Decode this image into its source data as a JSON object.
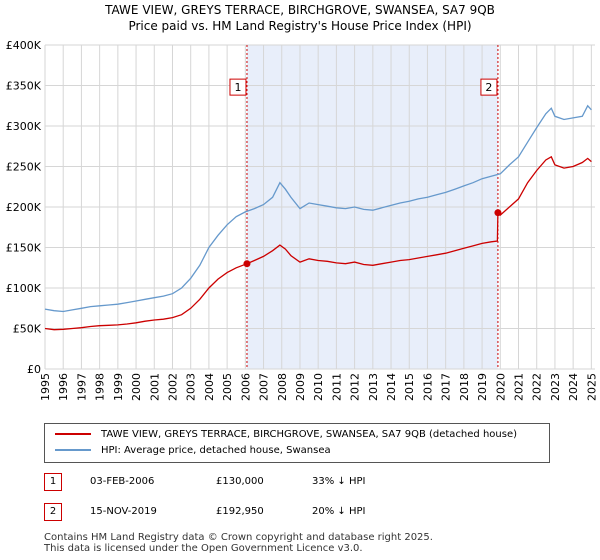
{
  "title": {
    "line1": "TAWE VIEW, GREYS TERRACE, BIRCHGROVE, SWANSEA, SA7 9QB",
    "line2": "Price paid vs. HM Land Registry's House Price Index (HPI)"
  },
  "chart_data": {
    "type": "line",
    "x_range": [
      1995.0,
      2025.2
    ],
    "ylim": [
      0,
      400000
    ],
    "y_ticks": [
      {
        "value": 0,
        "label": "£0"
      },
      {
        "value": 50000,
        "label": "£50K"
      },
      {
        "value": 100000,
        "label": "£100K"
      },
      {
        "value": 150000,
        "label": "£150K"
      },
      {
        "value": 200000,
        "label": "£200K"
      },
      {
        "value": 250000,
        "label": "£250K"
      },
      {
        "value": 300000,
        "label": "£300K"
      },
      {
        "value": 350000,
        "label": "£350K"
      },
      {
        "value": 400000,
        "label": "£400K"
      }
    ],
    "x_ticks": [
      "1995",
      "1996",
      "1997",
      "1998",
      "1999",
      "2000",
      "2001",
      "2002",
      "2003",
      "2004",
      "2005",
      "2006",
      "2007",
      "2008",
      "2009",
      "2010",
      "2011",
      "2012",
      "2013",
      "2014",
      "2015",
      "2016",
      "2017",
      "2018",
      "2019",
      "2020",
      "2021",
      "2022",
      "2023",
      "2024",
      "2025"
    ],
    "grid": true,
    "shaded_span": [
      2006.09,
      2019.87
    ],
    "series": [
      {
        "name": "TAWE VIEW, GREYS TERRACE, BIRCHGROVE, SWANSEA, SA7 9QB (detached house)",
        "color": "#cc0000",
        "points": [
          [
            1995.0,
            50000
          ],
          [
            1995.5,
            48500
          ],
          [
            1996.0,
            49000
          ],
          [
            1996.5,
            50000
          ],
          [
            1997.0,
            51000
          ],
          [
            1997.5,
            52500
          ],
          [
            1998.0,
            53500
          ],
          [
            1998.5,
            54000
          ],
          [
            1999.0,
            54500
          ],
          [
            1999.5,
            55500
          ],
          [
            2000.0,
            57000
          ],
          [
            2000.5,
            59000
          ],
          [
            2001.0,
            60500
          ],
          [
            2001.5,
            61500
          ],
          [
            2002.0,
            63500
          ],
          [
            2002.5,
            67000
          ],
          [
            2003.0,
            75000
          ],
          [
            2003.5,
            86000
          ],
          [
            2004.0,
            100000
          ],
          [
            2004.5,
            111000
          ],
          [
            2005.0,
            119000
          ],
          [
            2005.5,
            125000
          ],
          [
            2006.09,
            130000
          ],
          [
            2006.5,
            134000
          ],
          [
            2007.0,
            139000
          ],
          [
            2007.5,
            146000
          ],
          [
            2007.9,
            153000
          ],
          [
            2008.2,
            148000
          ],
          [
            2008.5,
            140000
          ],
          [
            2009.0,
            132000
          ],
          [
            2009.5,
            136000
          ],
          [
            2010.0,
            134000
          ],
          [
            2010.5,
            133000
          ],
          [
            2011.0,
            131000
          ],
          [
            2011.5,
            130000
          ],
          [
            2012.0,
            132000
          ],
          [
            2012.5,
            129000
          ],
          [
            2013.0,
            128000
          ],
          [
            2013.5,
            130000
          ],
          [
            2014.0,
            132000
          ],
          [
            2014.5,
            134000
          ],
          [
            2015.0,
            135000
          ],
          [
            2015.5,
            137000
          ],
          [
            2016.0,
            139000
          ],
          [
            2016.5,
            141000
          ],
          [
            2017.0,
            143000
          ],
          [
            2017.5,
            146000
          ],
          [
            2018.0,
            149000
          ],
          [
            2018.5,
            152000
          ],
          [
            2019.0,
            155000
          ],
          [
            2019.5,
            157000
          ],
          [
            2019.84,
            158000
          ],
          [
            2019.87,
            192950
          ],
          [
            2020.0,
            190000
          ],
          [
            2020.5,
            200000
          ],
          [
            2021.0,
            210000
          ],
          [
            2021.5,
            230000
          ],
          [
            2022.0,
            245000
          ],
          [
            2022.5,
            258000
          ],
          [
            2022.8,
            262000
          ],
          [
            2023.0,
            252000
          ],
          [
            2023.5,
            248000
          ],
          [
            2024.0,
            250000
          ],
          [
            2024.5,
            255000
          ],
          [
            2024.8,
            260000
          ],
          [
            2025.0,
            256000
          ]
        ]
      },
      {
        "name": "HPI: Average price, detached house, Swansea",
        "color": "#6699cc",
        "points": [
          [
            1995.0,
            74000
          ],
          [
            1995.5,
            72000
          ],
          [
            1996.0,
            71000
          ],
          [
            1996.5,
            73000
          ],
          [
            1997.0,
            75000
          ],
          [
            1997.5,
            77000
          ],
          [
            1998.0,
            78000
          ],
          [
            1998.5,
            79000
          ],
          [
            1999.0,
            80000
          ],
          [
            1999.5,
            82000
          ],
          [
            2000.0,
            84000
          ],
          [
            2000.5,
            86000
          ],
          [
            2001.0,
            88000
          ],
          [
            2001.5,
            90000
          ],
          [
            2002.0,
            93000
          ],
          [
            2002.5,
            100000
          ],
          [
            2003.0,
            112000
          ],
          [
            2003.5,
            128000
          ],
          [
            2004.0,
            150000
          ],
          [
            2004.5,
            165000
          ],
          [
            2005.0,
            178000
          ],
          [
            2005.5,
            188000
          ],
          [
            2006.0,
            194000
          ],
          [
            2006.5,
            198000
          ],
          [
            2007.0,
            203000
          ],
          [
            2007.5,
            212000
          ],
          [
            2007.9,
            230000
          ],
          [
            2008.2,
            222000
          ],
          [
            2008.5,
            212000
          ],
          [
            2009.0,
            198000
          ],
          [
            2009.5,
            205000
          ],
          [
            2010.0,
            203000
          ],
          [
            2010.5,
            201000
          ],
          [
            2011.0,
            199000
          ],
          [
            2011.5,
            198000
          ],
          [
            2012.0,
            200000
          ],
          [
            2012.5,
            197000
          ],
          [
            2013.0,
            196000
          ],
          [
            2013.5,
            199000
          ],
          [
            2014.0,
            202000
          ],
          [
            2014.5,
            205000
          ],
          [
            2015.0,
            207000
          ],
          [
            2015.5,
            210000
          ],
          [
            2016.0,
            212000
          ],
          [
            2016.5,
            215000
          ],
          [
            2017.0,
            218000
          ],
          [
            2017.5,
            222000
          ],
          [
            2018.0,
            226000
          ],
          [
            2018.5,
            230000
          ],
          [
            2019.0,
            235000
          ],
          [
            2019.5,
            238000
          ],
          [
            2020.0,
            241000
          ],
          [
            2020.5,
            252000
          ],
          [
            2021.0,
            262000
          ],
          [
            2021.5,
            280000
          ],
          [
            2022.0,
            298000
          ],
          [
            2022.5,
            315000
          ],
          [
            2022.8,
            322000
          ],
          [
            2023.0,
            312000
          ],
          [
            2023.5,
            308000
          ],
          [
            2024.0,
            310000
          ],
          [
            2024.5,
            312000
          ],
          [
            2024.8,
            325000
          ],
          [
            2025.0,
            320000
          ]
        ]
      }
    ],
    "sale_points": [
      {
        "x": 2006.09,
        "y": 130000
      },
      {
        "x": 2019.87,
        "y": 192950
      }
    ],
    "markers": [
      {
        "label": "1",
        "x": 2006.09,
        "y": 348000
      },
      {
        "label": "2",
        "x": 2019.87,
        "y": 348000
      }
    ]
  },
  "legend": {
    "series1": "TAWE VIEW, GREYS TERRACE, BIRCHGROVE, SWANSEA, SA7 9QB (detached house)",
    "series2": "HPI: Average price, detached house, Swansea",
    "color1": "#cc0000",
    "color2": "#6699cc"
  },
  "transactions": [
    {
      "num": "1",
      "date": "03-FEB-2006",
      "price": "£130,000",
      "hpi": "33% ↓ HPI"
    },
    {
      "num": "2",
      "date": "15-NOV-2019",
      "price": "£192,950",
      "hpi": "20% ↓ HPI"
    }
  ],
  "footer": {
    "line1": "Contains HM Land Registry data © Crown copyright and database right 2025.",
    "line2": "This data is licensed under the Open Government Licence v3.0."
  }
}
